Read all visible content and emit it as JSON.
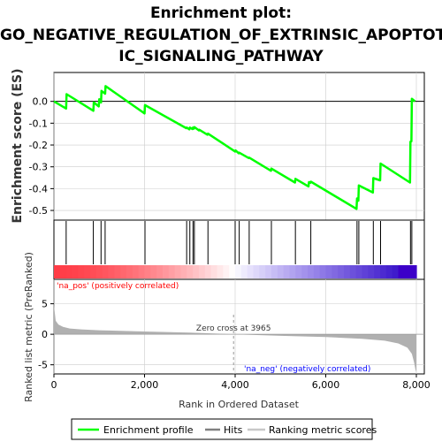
{
  "title_lines": [
    "Enrichment plot:",
    "GO_NEGATIVE_REGULATION_OF_EXTRINSIC_APOPTOT",
    "IC_SIGNALING_PATHWAY"
  ],
  "colors": {
    "enrichment_line": "#00ff00",
    "hit_line": "#000000",
    "metric_fill": "#b0b0b0",
    "positive_label": "#ff0000",
    "negative_label": "#0000ff",
    "grid": "#cccccc"
  },
  "chart_data": {
    "type": "line",
    "x_range": [
      0,
      8000
    ],
    "x_ticks": [
      0,
      2000,
      4000,
      6000,
      8000
    ],
    "x_tick_labels": [
      "0",
      "2,000",
      "4,000",
      "6,000",
      "8,000"
    ],
    "xlabel": "Rank in Ordered Dataset",
    "es_panel": {
      "ylabel": "Enrichment score (ES)",
      "ylim": [
        -0.52,
        0.1
      ],
      "y_ticks": [
        0.0,
        -0.1,
        -0.2,
        -0.3,
        -0.4,
        -0.5
      ],
      "y_tick_labels": [
        "0.0",
        "-0.1",
        "-0.2",
        "-0.3",
        "-0.4",
        "-0.5"
      ],
      "profile": {
        "x": [
          0,
          270,
          280,
          870,
          880,
          990,
          1000,
          1040,
          1050,
          1130,
          1140,
          2000,
          2010,
          2920,
          2930,
          2990,
          3000,
          3060,
          3070,
          3090,
          3100,
          3200,
          3210,
          3390,
          3400,
          4000,
          4010,
          4080,
          4090,
          4300,
          4310,
          4790,
          4800,
          5320,
          5330,
          5620,
          5630,
          5660,
          5670,
          6680,
          6690,
          6720,
          6730,
          7040,
          7050,
          7200,
          7210,
          7860,
          7870,
          7890,
          7900,
          7970
        ],
        "y": [
          0.0,
          -0.033,
          0.033,
          -0.043,
          -0.005,
          -0.023,
          0.01,
          -0.005,
          0.048,
          0.035,
          0.07,
          -0.055,
          -0.017,
          -0.123,
          -0.12,
          -0.128,
          -0.12,
          -0.127,
          -0.12,
          -0.125,
          -0.118,
          -0.133,
          -0.13,
          -0.153,
          -0.148,
          -0.23,
          -0.225,
          -0.238,
          -0.235,
          -0.26,
          -0.258,
          -0.318,
          -0.308,
          -0.372,
          -0.355,
          -0.39,
          -0.37,
          -0.373,
          -0.368,
          -0.493,
          -0.445,
          -0.455,
          -0.385,
          -0.418,
          -0.352,
          -0.362,
          -0.285,
          -0.372,
          -0.185,
          -0.183,
          0.012,
          0.0
        ]
      }
    },
    "hits": [
      270,
      870,
      1040,
      1130,
      2010,
      2930,
      3000,
      3070,
      3100,
      3400,
      4000,
      4090,
      4310,
      4800,
      5330,
      5670,
      6690,
      6730,
      7050,
      7210,
      7870,
      7900
    ],
    "metric_panel": {
      "ylabel": "Ranked list metric (PreRanked)",
      "ylim": [
        -6.5,
        9
      ],
      "y_ticks": [
        5,
        0,
        -5
      ],
      "y_tick_labels": [
        "5",
        "0",
        "-5"
      ],
      "curve": {
        "x": [
          0,
          40,
          100,
          200,
          350,
          600,
          1000,
          2000,
          3000,
          3965,
          5000,
          6000,
          6800,
          7300,
          7600,
          7800,
          7900,
          7950,
          7980,
          8000
        ],
        "y": [
          4.8,
          2.2,
          1.6,
          1.2,
          0.95,
          0.8,
          0.65,
          0.45,
          0.28,
          0.0,
          -0.25,
          -0.45,
          -0.75,
          -1.05,
          -1.5,
          -2.2,
          -3.2,
          -4.6,
          -5.8,
          -6.2
        ]
      },
      "zero_cross_label": "Zero cross at 3965",
      "zero_cross": 3965,
      "positive_label": "'na_pos' (positively correlated)",
      "negative_label": "'na_neg' (negatively correlated)"
    },
    "legend": {
      "placement": "bottom",
      "items": [
        {
          "label": "Enrichment profile",
          "color": "#00ff00"
        },
        {
          "label": "Hits",
          "color": "#808080"
        },
        {
          "label": "Ranking metric scores",
          "color": "#c8c8c8"
        }
      ]
    }
  }
}
